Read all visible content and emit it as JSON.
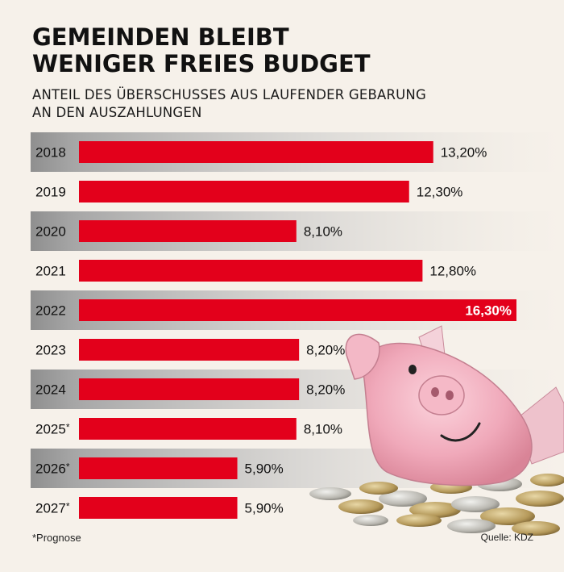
{
  "header": {
    "title_line1": "GEMEINDEN BLEIBT",
    "title_line2": "WENIGER FREIES BUDGET",
    "subtitle_line1": "ANTEIL DES ÜBERSCHUSSES AUS LAUFENDER GEBARUNG",
    "subtitle_line2": "AN DEN AUSZAHLUNGEN"
  },
  "footer": {
    "footnote": "*Prognose",
    "source": "Quelle: KDZ"
  },
  "colors": {
    "bar": "#e3001b",
    "band": "#8f8f8f",
    "highlight_label": "#ffffff"
  },
  "chart_data": {
    "type": "bar",
    "orientation": "horizontal",
    "categories": [
      "2018",
      "2019",
      "2020",
      "2021",
      "2022",
      "2023",
      "2024",
      "2025*",
      "2026*",
      "2027*"
    ],
    "values": [
      13.2,
      12.3,
      8.1,
      12.8,
      16.3,
      8.2,
      8.2,
      8.1,
      5.9,
      5.9
    ],
    "value_labels": [
      "13,20%",
      "12,30%",
      "8,10%",
      "12,80%",
      "16,30%",
      "8,20%",
      "8,20%",
      "8,10%",
      "5,90%",
      "5,90%"
    ],
    "highlight": "2022",
    "title": "GEMEINDEN BLEIBT WENIGER FREIES BUDGET",
    "xlabel": "",
    "ylabel": "",
    "xlim": [
      0,
      16.3
    ],
    "grid": false,
    "legend": "none"
  }
}
